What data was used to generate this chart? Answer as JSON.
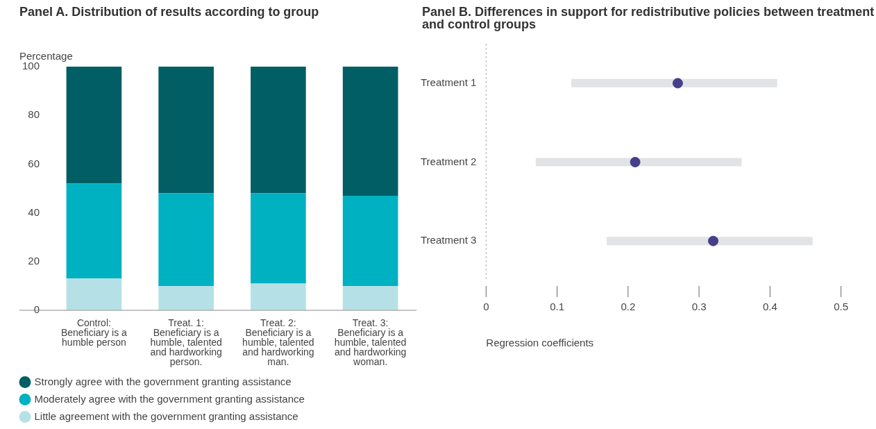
{
  "chart_data": [
    {
      "type": "bar",
      "title": "Panel A. Distribution of results according to group",
      "ylabel": "Percentage",
      "stacked": true,
      "categories": [
        "Control: Beneficiary is a humble person",
        "Treat. 1: Beneficiary is a humble, talented and hardworking person.",
        "Treat. 2: Beneficiary is a humble, talented and hardworking man.",
        "Treat. 3: Beneficiary is a humble, talented and hardworking woman."
      ],
      "ylim": [
        0,
        100
      ],
      "yticks": [
        0,
        20,
        40,
        60,
        80,
        100
      ],
      "grid": false,
      "legend": "bottom",
      "series": [
        {
          "name": "Little agreement with the government granting assistance",
          "color": "#b5e1e6",
          "values": [
            13,
            10,
            11,
            10
          ]
        },
        {
          "name": "Moderately agree with the government granting assistance",
          "color": "#00b1c1",
          "values": [
            39,
            38,
            37,
            37
          ]
        },
        {
          "name": "Strongly agree with the government granting assistance",
          "color": "#015e65",
          "values": [
            48,
            52,
            52,
            53
          ]
        }
      ]
    },
    {
      "type": "scatter",
      "title": "Panel B. Differences in support for redistributive policies between treatment and control groups",
      "xlabel": "Regression coefficients",
      "orientation": "horizontal",
      "categories": [
        "Treatment 1",
        "Treatment 2",
        "Treatment 3"
      ],
      "xlim": [
        0,
        0.5
      ],
      "xticks": [
        0,
        0.1,
        0.2,
        0.3,
        0.4,
        0.5
      ],
      "grid": false,
      "legend": false,
      "marker": "circle",
      "color": "#463f8a",
      "values": [
        0.27,
        0.21,
        0.32
      ],
      "errors": [
        [
          0.12,
          0.41
        ],
        [
          0.07,
          0.36
        ],
        [
          0.17,
          0.46
        ]
      ],
      "ref_lines": [
        {
          "axis": "x",
          "value": 0,
          "line_style": "dashed",
          "color": "#aaaaaa"
        }
      ]
    }
  ]
}
